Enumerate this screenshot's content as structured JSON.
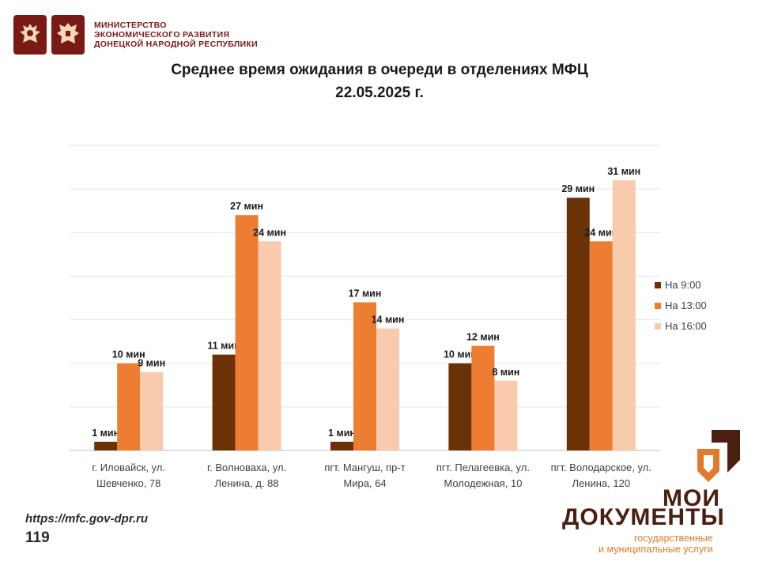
{
  "header": {
    "ministry_line1": "МИНИСТЕРСТВО",
    "ministry_line2": "ЭКОНОМИЧЕСКОГО РАЗВИТИЯ",
    "ministry_line3": "ДОНЕЦКОЙ НАРОДНОЙ РЕСПУБЛИКИ"
  },
  "footer": {
    "url": "https://mfc.gov-dpr.ru",
    "page_number": "119"
  },
  "brand": {
    "name_line1": "МОИ",
    "name_line2": "ДОКУМЕНТЫ",
    "sub_line1": "государственные",
    "sub_line2": "и муниципальные услуги",
    "colors": {
      "dark": "#4a1f12",
      "accent": "#e07a2c"
    }
  },
  "chart_data": {
    "type": "bar",
    "title_line1": "Среднее время ожидания в очереди в отделениях МФЦ",
    "title_line2": "22.05.2025 г.",
    "categories": [
      [
        "г. Иловайск, ул.",
        "Шевченко, 78"
      ],
      [
        "г. Волноваха, ул.",
        "Ленина, д. 88"
      ],
      [
        "пгт. Мангуш, пр-т",
        "Мира, 64"
      ],
      [
        "пгт. Пелагеевка, ул.",
        "Молодежная, 10"
      ],
      [
        "пгт. Володарское, ул.",
        "Ленина, 120"
      ]
    ],
    "series": [
      {
        "name": "На 9:00",
        "color": "#6b3208",
        "values": [
          1,
          11,
          1,
          10,
          29
        ],
        "labels": [
          "1 мин",
          "11 мин",
          "1 мин",
          "10 мин",
          "29 мин"
        ]
      },
      {
        "name": "На 13:00",
        "color": "#ed7d31",
        "values": [
          10,
          27,
          17,
          12,
          24
        ],
        "labels": [
          "10  мин",
          "27 мин",
          "17 мин",
          "12 мин",
          "24 мин"
        ]
      },
      {
        "name": "На 16:00",
        "color": "#f8cbad",
        "values": [
          9,
          24,
          14,
          8,
          31
        ],
        "labels": [
          "9 мин",
          "24 мин",
          "14 мин",
          "8 мин",
          "31 мин"
        ]
      }
    ],
    "ylim": [
      0,
      35
    ],
    "grid": true,
    "legend": "right"
  }
}
